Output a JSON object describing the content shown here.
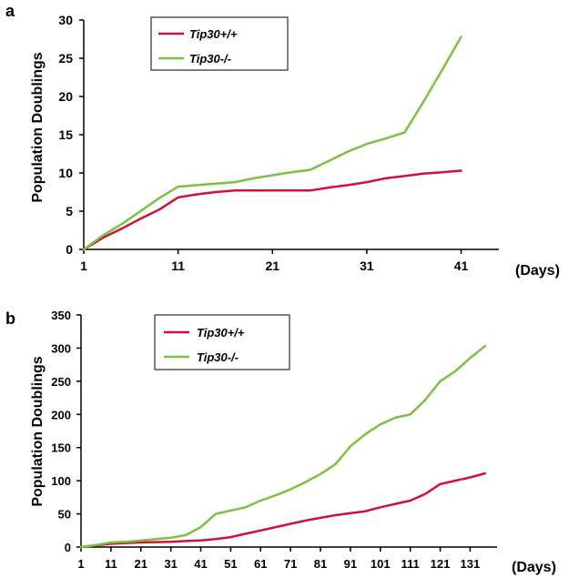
{
  "chart_data": [
    {
      "panel": "a",
      "type": "line",
      "ylabel": "Population Doublings",
      "xlabel": "(Days)",
      "xlim": [
        1,
        45
      ],
      "ylim": [
        0,
        30
      ],
      "x_ticks": [
        1,
        11,
        21,
        31,
        41
      ],
      "y_ticks": [
        0,
        5,
        10,
        15,
        20,
        25,
        30
      ],
      "legend_position": "top-left",
      "series": [
        {
          "name": "Tip30+/+",
          "color": "#d4103a",
          "points": [
            [
              1,
              0
            ],
            [
              3,
              1.5
            ],
            [
              5,
              2.7
            ],
            [
              7,
              4.0
            ],
            [
              9,
              5.2
            ],
            [
              11,
              6.8
            ],
            [
              13,
              7.2
            ],
            [
              15,
              7.5
            ],
            [
              17,
              7.7
            ],
            [
              20,
              7.7
            ],
            [
              23,
              7.7
            ],
            [
              25,
              7.7
            ],
            [
              27,
              8.1
            ],
            [
              29,
              8.4
            ],
            [
              31,
              8.8
            ],
            [
              33,
              9.3
            ],
            [
              35,
              9.6
            ],
            [
              37,
              9.9
            ],
            [
              39,
              10.1
            ],
            [
              41,
              10.3
            ]
          ]
        },
        {
          "name": "Tip30-/-",
          "color": "#7bc142",
          "points": [
            [
              1,
              0
            ],
            [
              3,
              1.8
            ],
            [
              5,
              3.3
            ],
            [
              7,
              5.0
            ],
            [
              9,
              6.7
            ],
            [
              11,
              8.2
            ],
            [
              13,
              8.4
            ],
            [
              15,
              8.6
            ],
            [
              17,
              8.8
            ],
            [
              19,
              9.3
            ],
            [
              21,
              9.7
            ],
            [
              23,
              10.1
            ],
            [
              25,
              10.4
            ],
            [
              27,
              11.6
            ],
            [
              29,
              12.8
            ],
            [
              31,
              13.8
            ],
            [
              33,
              14.5
            ],
            [
              35,
              15.3
            ],
            [
              37,
              19.3
            ],
            [
              39,
              23.5
            ],
            [
              41,
              27.8
            ]
          ]
        }
      ]
    },
    {
      "panel": "b",
      "type": "line",
      "ylabel": "Population Doublings",
      "xlabel": "(Days)",
      "xlim": [
        1,
        140
      ],
      "ylim": [
        0,
        350
      ],
      "x_ticks": [
        1,
        11,
        21,
        31,
        41,
        51,
        61,
        71,
        81,
        91,
        101,
        111,
        121,
        131
      ],
      "y_ticks": [
        0,
        50,
        100,
        150,
        200,
        250,
        300,
        350
      ],
      "legend_position": "top-left",
      "series": [
        {
          "name": "Tip30+/+",
          "color": "#d4103a",
          "points": [
            [
              1,
              0
            ],
            [
              11,
              5
            ],
            [
              21,
              7
            ],
            [
              31,
              8
            ],
            [
              36,
              9
            ],
            [
              41,
              10
            ],
            [
              46,
              12
            ],
            [
              51,
              15
            ],
            [
              56,
              20
            ],
            [
              61,
              25
            ],
            [
              66,
              30
            ],
            [
              71,
              35
            ],
            [
              76,
              40
            ],
            [
              81,
              44
            ],
            [
              86,
              48
            ],
            [
              91,
              51
            ],
            [
              96,
              54
            ],
            [
              101,
              60
            ],
            [
              106,
              65
            ],
            [
              111,
              70
            ],
            [
              116,
              80
            ],
            [
              121,
              95
            ],
            [
              126,
              100
            ],
            [
              131,
              105
            ],
            [
              136,
              111
            ]
          ]
        },
        {
          "name": "Tip30-/-",
          "color": "#7bc142",
          "points": [
            [
              1,
              0
            ],
            [
              6,
              3
            ],
            [
              11,
              7
            ],
            [
              16,
              8
            ],
            [
              21,
              10
            ],
            [
              26,
              12
            ],
            [
              31,
              14
            ],
            [
              36,
              18
            ],
            [
              41,
              30
            ],
            [
              46,
              50
            ],
            [
              51,
              55
            ],
            [
              56,
              60
            ],
            [
              61,
              70
            ],
            [
              66,
              78
            ],
            [
              71,
              87
            ],
            [
              76,
              98
            ],
            [
              81,
              110
            ],
            [
              86,
              125
            ],
            [
              91,
              152
            ],
            [
              96,
              170
            ],
            [
              101,
              185
            ],
            [
              106,
              195
            ],
            [
              111,
              200
            ],
            [
              116,
              222
            ],
            [
              121,
              250
            ],
            [
              126,
              265
            ],
            [
              131,
              285
            ],
            [
              136,
              303
            ]
          ]
        }
      ]
    }
  ]
}
